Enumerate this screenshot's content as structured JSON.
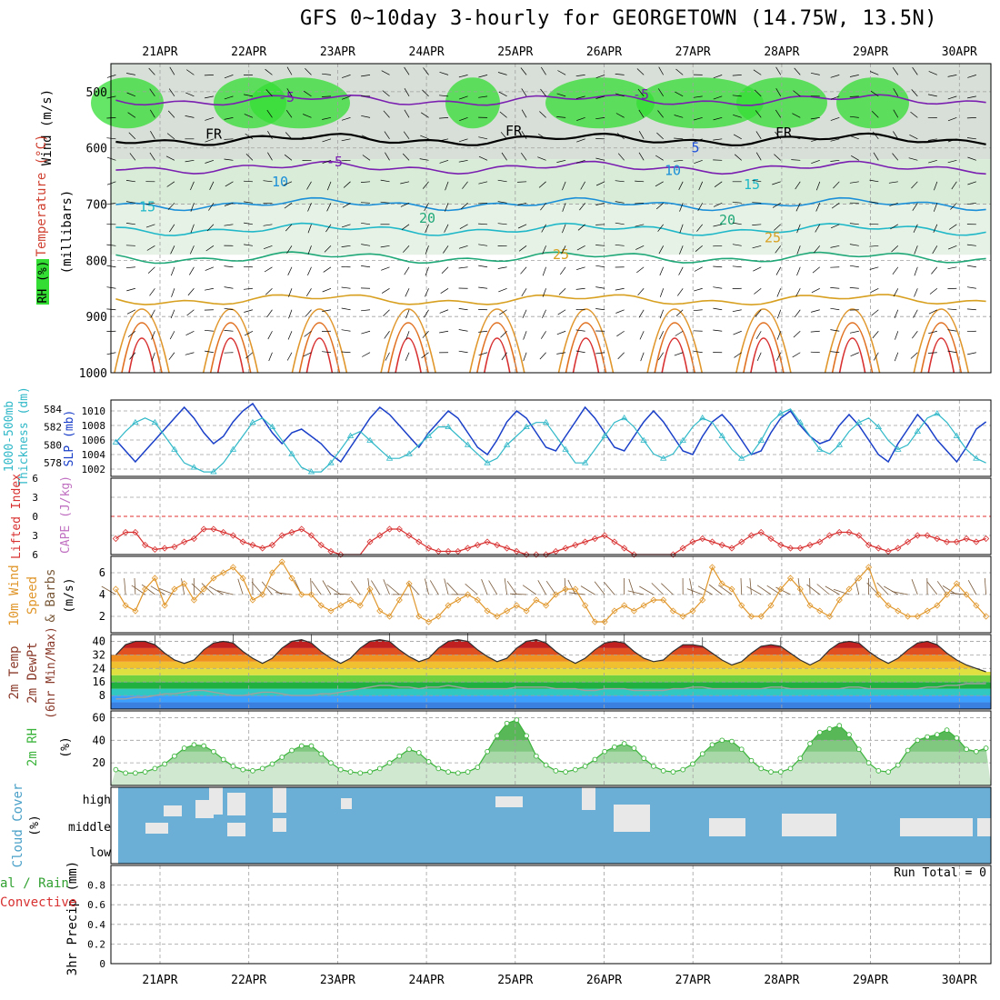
{
  "title": "GFS 0~10day 3-hourly for GEORGETOWN (14.75W, 13.5N)",
  "date_labels": [
    "21APR",
    "22APR",
    "23APR",
    "24APR",
    "25APR",
    "26APR",
    "27APR",
    "28APR",
    "29APR",
    "30APR"
  ],
  "colors": {
    "frame": "#000000",
    "grid": "#a0a0a0",
    "rh_green": "#33dd33",
    "rh_light": "#d8ecd8",
    "rh_gray": "#b8c4b8",
    "slp": "#1a3fc8",
    "thickness": "#30b8c8",
    "lifted_index": "#d83030",
    "wind_speed": "#e0962a",
    "wind_barb": "#7a5a3a",
    "rh2m": "#3cb43c",
    "cloud_blue": "#6baed6",
    "cloud_clear": "#e8e8e8",
    "precip_label": "#000000"
  },
  "chart_data": [
    {
      "type": "heatmap",
      "panel": "upper-air",
      "ylabel_parts": [
        "Wind (m/s)",
        "Temperature (°C)",
        "RH (%)",
        "(millibars)"
      ],
      "ylim": [
        1000,
        450
      ],
      "yticks": [
        500,
        600,
        700,
        800,
        900,
        1000
      ],
      "x": [
        "21APR",
        "22APR",
        "23APR",
        "24APR",
        "25APR",
        "26APR",
        "27APR",
        "28APR",
        "29APR",
        "30APR"
      ],
      "temperature_contours": [
        {
          "label": "-5",
          "level_mb": 515
        },
        {
          "label": "FR",
          "level_mb": 585
        },
        {
          "label": "-5",
          "level_mb": 635
        },
        {
          "label": "10",
          "level_mb": 700
        },
        {
          "label": "15",
          "level_mb": 745
        },
        {
          "label": "20",
          "level_mb": 795
        },
        {
          "label": "25",
          "level_mb": 870
        }
      ],
      "contour_labels": [
        "-5",
        "-5",
        "FR",
        "FR",
        "FR",
        "5",
        "-5",
        "10",
        "10",
        "15",
        "15",
        "20",
        "20",
        "25",
        "25"
      ]
    },
    {
      "type": "line",
      "panel": "slp-thickness",
      "ylabel_left": "1000-500mb Thickness (dm)",
      "ylabel_right": "SLP (mb)",
      "yticks_left": [
        578,
        580,
        582,
        584
      ],
      "yticks_right": [
        1002,
        1004,
        1006,
        1008,
        1010
      ],
      "series": [
        {
          "name": "SLP (mb)",
          "values": [
            1006.0,
            1004.5,
            1003.0,
            1004.5,
            1006.0,
            1007.5,
            1009.0,
            1010.5,
            1009.0,
            1007.0,
            1005.5,
            1006.5,
            1008.5,
            1010.0,
            1011.0,
            1009.0,
            1007.0,
            1005.5,
            1007.0,
            1007.5,
            1006.5,
            1005.5,
            1004.0,
            1003.0,
            1005.0,
            1007.0,
            1009.0,
            1010.5,
            1009.5,
            1008.0,
            1006.5,
            1005.0,
            1007.0,
            1008.5,
            1010.0,
            1009.0,
            1007.0,
            1005.0,
            1004.0,
            1006.0,
            1008.5,
            1010.0,
            1009.0,
            1007.0,
            1005.0,
            1004.5,
            1006.5,
            1008.5,
            1010.5,
            1009.0,
            1007.0,
            1005.0,
            1004.5,
            1006.5,
            1008.5,
            1010.0,
            1008.5,
            1006.5,
            1004.5,
            1004.0,
            1006.5,
            1008.5,
            1009.5,
            1008.0,
            1006.0,
            1004.0,
            1004.5,
            1007.0,
            1009.0,
            1010.0,
            1008.0,
            1006.5,
            1005.5,
            1006.0,
            1008.0,
            1009.5,
            1008.0,
            1006.0,
            1004.0,
            1003.0,
            1005.5,
            1007.5,
            1009.5,
            1008.0,
            1006.0,
            1004.5,
            1003.0,
            1005.0,
            1007.5,
            1008.5
          ]
        },
        {
          "name": "1000-500mb Thickness (dm)",
          "values": [
            580.3,
            581.5,
            582.5,
            583.0,
            582.5,
            581.0,
            579.5,
            578.0,
            577.5,
            577.0,
            577.0,
            578.0,
            579.5,
            581.0,
            582.5,
            583.0,
            582.0,
            580.5,
            579.0,
            577.5,
            577.0,
            577.0,
            578.0,
            579.5,
            581.0,
            581.5,
            580.5,
            579.5,
            578.5,
            578.5,
            579.0,
            580.0,
            581.0,
            582.0,
            582.0,
            581.0,
            580.0,
            579.0,
            578.0,
            578.5,
            580.0,
            581.0,
            582.0,
            582.5,
            582.5,
            581.0,
            579.5,
            578.0,
            578.0,
            579.5,
            581.0,
            582.5,
            583.0,
            582.0,
            580.5,
            579.0,
            578.5,
            579.0,
            580.5,
            582.0,
            583.0,
            582.5,
            581.0,
            579.5,
            578.5,
            579.0,
            580.5,
            582.5,
            583.5,
            584.0,
            582.5,
            581.0,
            579.5,
            579.0,
            580.0,
            581.5,
            582.5,
            583.0,
            582.0,
            580.5,
            579.5,
            580.0,
            581.5,
            583.0,
            583.5,
            582.5,
            581.0,
            579.5,
            578.5,
            578.0
          ]
        }
      ]
    },
    {
      "type": "line",
      "panel": "lifted-index",
      "ylabel": "Lifted Index",
      "ylabel2": "CAPE (J/kg)",
      "yticks": [
        -6,
        -3,
        0,
        3,
        6
      ],
      "ylim": [
        -6,
        6
      ],
      "series": [
        {
          "name": "Lifted Index",
          "values": [
            3.5,
            2.5,
            2.5,
            4.5,
            5.2,
            5.0,
            4.8,
            4.0,
            3.5,
            2.0,
            2.0,
            2.5,
            3.0,
            4.0,
            4.5,
            5.0,
            4.5,
            3.0,
            2.5,
            2.0,
            3.0,
            4.5,
            5.5,
            6.0,
            6.2,
            6.4,
            4.0,
            3.0,
            2.0,
            2.0,
            3.0,
            4.0,
            5.0,
            5.5,
            5.5,
            5.5,
            5.0,
            4.5,
            4.0,
            4.5,
            5.0,
            5.5,
            6.0,
            6.0,
            6.0,
            5.5,
            5.0,
            4.5,
            4.0,
            3.5,
            3.0,
            4.0,
            5.0,
            6.0,
            6.5,
            6.5,
            6.5,
            6.0,
            5.0,
            4.0,
            3.5,
            4.0,
            4.5,
            5.0,
            4.0,
            3.0,
            2.5,
            3.5,
            4.5,
            5.0,
            5.0,
            4.5,
            4.0,
            3.0,
            2.5,
            2.5,
            3.0,
            4.5,
            5.0,
            5.5,
            5.0,
            4.0,
            3.0,
            3.0,
            3.5,
            4.0,
            4.0,
            3.5,
            4.0,
            3.5
          ]
        }
      ]
    },
    {
      "type": "line",
      "panel": "wind10m",
      "ylabel": "10m Wind Speed & Barbs",
      "yunit": "(m/s)",
      "yticks": [
        2,
        4,
        6
      ],
      "series": [
        {
          "name": "10m Wind Speed",
          "values": [
            4.5,
            3.0,
            2.5,
            4.5,
            5.5,
            3.0,
            4.5,
            5.0,
            3.5,
            4.5,
            5.5,
            6.0,
            6.5,
            5.5,
            3.5,
            4.0,
            6.0,
            7.0,
            5.5,
            4.0,
            4.0,
            3.0,
            2.5,
            3.0,
            3.5,
            3.0,
            4.5,
            2.5,
            2.0,
            3.5,
            5.0,
            2.0,
            1.5,
            2.0,
            3.0,
            3.5,
            4.0,
            3.5,
            2.5,
            2.0,
            2.5,
            3.0,
            2.5,
            3.5,
            3.0,
            4.0,
            4.5,
            4.5,
            3.0,
            1.5,
            1.5,
            2.5,
            3.0,
            2.5,
            3.0,
            3.5,
            3.5,
            2.5,
            2.0,
            2.5,
            3.5,
            6.5,
            5.0,
            4.5,
            3.0,
            2.0,
            2.0,
            3.0,
            4.5,
            5.5,
            4.5,
            3.0,
            2.5,
            2.0,
            3.5,
            4.5,
            5.5,
            6.5,
            4.0,
            3.0,
            2.5,
            2.0,
            2.0,
            2.5,
            3.0,
            4.0,
            5.0,
            4.0,
            3.0,
            2.0
          ]
        }
      ]
    },
    {
      "type": "area",
      "panel": "temp2m",
      "ylabel": "2m Temp",
      "ylabel2": "2m DewPt",
      "ylabel3": "(6hr Min/Max)",
      "yticks": [
        8,
        16,
        24,
        32,
        40
      ],
      "ylim": [
        0,
        44
      ],
      "series": [
        {
          "name": "2m Temp",
          "values": [
            32,
            38,
            40,
            40,
            38,
            33,
            29,
            27,
            29,
            35,
            39,
            40,
            39,
            34,
            30,
            27,
            30,
            36,
            40,
            41,
            39,
            34,
            30,
            27,
            30,
            36,
            40,
            41,
            40,
            35,
            31,
            28,
            30,
            36,
            40,
            41,
            40,
            35,
            31,
            28,
            30,
            36,
            40,
            41,
            39,
            34,
            30,
            27,
            30,
            35,
            39,
            40,
            39,
            34,
            30,
            28,
            29,
            34,
            38,
            38,
            37,
            33,
            29,
            26,
            28,
            33,
            37,
            38,
            37,
            33,
            29,
            26,
            29,
            35,
            39,
            40,
            39,
            34,
            30,
            27,
            30,
            35,
            39,
            40,
            38,
            33,
            29,
            26,
            24,
            22
          ]
        },
        {
          "name": "2m DewPt",
          "values": [
            6,
            6,
            7,
            7,
            8,
            9,
            9,
            10,
            11,
            11,
            10,
            9,
            8,
            8,
            9,
            10,
            10,
            9,
            8,
            8,
            8,
            9,
            9,
            10,
            11,
            12,
            13,
            14,
            14,
            13,
            13,
            12,
            13,
            13,
            14,
            13,
            12,
            12,
            12,
            12,
            12,
            13,
            13,
            13,
            13,
            12,
            12,
            12,
            11,
            11,
            12,
            12,
            12,
            11,
            11,
            11,
            11,
            12,
            12,
            13,
            13,
            12,
            12,
            12,
            12,
            12,
            12,
            13,
            13,
            12,
            12,
            12,
            12,
            12,
            12,
            13,
            13,
            12,
            12,
            12,
            12,
            12,
            12,
            13,
            13,
            14,
            14,
            15,
            15,
            15
          ]
        }
      ]
    },
    {
      "type": "area",
      "panel": "rh2m",
      "ylabel": "2m RH",
      "yunit": "(%)",
      "yticks": [
        20,
        40,
        60
      ],
      "ylim": [
        0,
        66
      ],
      "series": [
        {
          "name": "2m RH",
          "values": [
            14,
            11,
            11,
            12,
            15,
            19,
            26,
            33,
            36,
            35,
            30,
            23,
            17,
            14,
            13,
            15,
            19,
            25,
            31,
            35,
            35,
            28,
            20,
            14,
            12,
            11,
            12,
            15,
            20,
            26,
            32,
            29,
            21,
            15,
            12,
            11,
            12,
            16,
            30,
            44,
            55,
            58,
            44,
            26,
            18,
            13,
            12,
            14,
            17,
            23,
            30,
            34,
            37,
            33,
            24,
            17,
            13,
            12,
            14,
            19,
            28,
            36,
            40,
            39,
            32,
            22,
            15,
            12,
            12,
            15,
            24,
            37,
            47,
            50,
            53,
            45,
            32,
            20,
            13,
            12,
            18,
            31,
            40,
            43,
            45,
            49,
            42,
            32,
            30,
            33
          ]
        }
      ]
    },
    {
      "type": "heatmap",
      "panel": "cloud-cover",
      "ylabel": "Cloud Cover",
      "yunit": "(%)",
      "levels": [
        "high",
        "middle",
        "low"
      ]
    },
    {
      "type": "bar",
      "panel": "precip",
      "ylabel": "3hr Precip (mm)",
      "ylabel_left_top": "al / Rain",
      "ylabel_left_bottom": "Convective",
      "yticks": [
        "0",
        "0.2",
        "0.4",
        "0.6",
        "0.8"
      ],
      "ylim": [
        0,
        1
      ],
      "run_total": "Run Total = 0",
      "values": []
    }
  ]
}
